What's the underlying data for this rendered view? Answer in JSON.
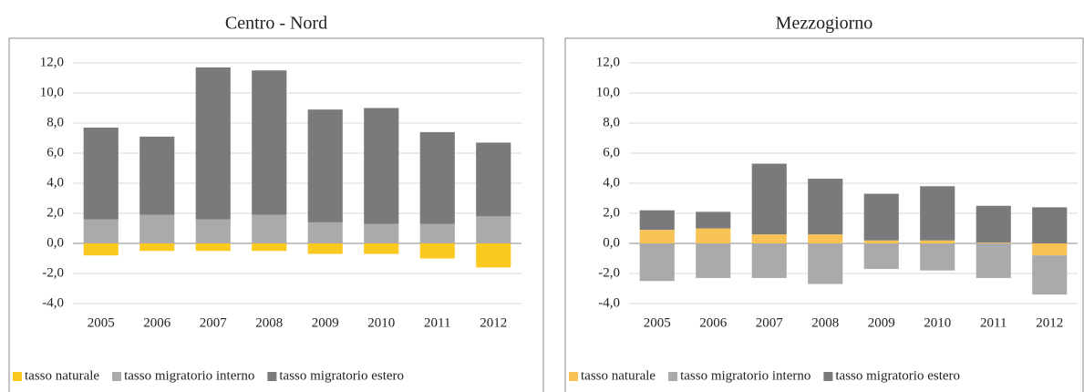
{
  "chart_data": [
    {
      "type": "stacked_bar",
      "title": "Centro - Nord",
      "categories": [
        "2005",
        "2006",
        "2007",
        "2008",
        "2009",
        "2010",
        "2011",
        "2012"
      ],
      "series": [
        {
          "name": "tasso naturale",
          "color": "#f9c91f",
          "values": [
            -0.8,
            -0.5,
            -0.5,
            -0.5,
            -0.7,
            -0.7,
            -1.0,
            -1.6
          ]
        },
        {
          "name": "tasso migratorio interno",
          "color": "#aaaaab",
          "values": [
            1.6,
            1.9,
            1.6,
            1.9,
            1.4,
            1.3,
            1.3,
            1.8
          ]
        },
        {
          "name": "tasso migratorio estero",
          "color": "#7a7a7c",
          "values": [
            6.1,
            5.2,
            10.1,
            9.6,
            7.5,
            7.7,
            6.1,
            4.9
          ]
        }
      ],
      "ylim": [
        -4,
        12
      ],
      "yticks": [
        {
          "value": -4,
          "label": "-4,0"
        },
        {
          "value": -2,
          "label": "-2,0"
        },
        {
          "value": 0,
          "label": "0,0"
        },
        {
          "value": 2,
          "label": "2,0"
        },
        {
          "value": 4,
          "label": "4,0"
        },
        {
          "value": 6,
          "label": "6,0"
        },
        {
          "value": 8,
          "label": "8,0"
        },
        {
          "value": 10,
          "label": "10,0"
        },
        {
          "value": 12,
          "label": "12,0"
        }
      ],
      "grid": true,
      "legend": "bottom"
    },
    {
      "type": "stacked_bar",
      "title": "Mezzogiorno",
      "categories": [
        "2005",
        "2006",
        "2007",
        "2008",
        "2009",
        "2010",
        "2011",
        "2012"
      ],
      "series": [
        {
          "name": "tasso naturale",
          "color": "#f9c254",
          "values": [
            0.9,
            1.0,
            0.6,
            0.6,
            0.2,
            0.2,
            0.05,
            -0.8
          ]
        },
        {
          "name": "tasso migratorio interno",
          "color": "#aaaaab",
          "values": [
            -2.5,
            -2.3,
            -2.3,
            -2.7,
            -1.7,
            -1.8,
            -2.3,
            -2.6
          ]
        },
        {
          "name": "tasso migratorio estero",
          "color": "#7a7a7c",
          "values": [
            1.3,
            1.1,
            4.7,
            3.7,
            3.1,
            3.6,
            2.45,
            2.4
          ]
        }
      ],
      "ylim": [
        -4,
        12
      ],
      "yticks": [
        {
          "value": -4,
          "label": "-4,0"
        },
        {
          "value": -2,
          "label": "-2,0"
        },
        {
          "value": 0,
          "label": "0,0"
        },
        {
          "value": 2,
          "label": "2,0"
        },
        {
          "value": 4,
          "label": "4,0"
        },
        {
          "value": 6,
          "label": "6,0"
        },
        {
          "value": 8,
          "label": "8,0"
        },
        {
          "value": 10,
          "label": "10,0"
        },
        {
          "value": 12,
          "label": "12,0"
        }
      ],
      "grid": true,
      "legend": "bottom"
    }
  ]
}
